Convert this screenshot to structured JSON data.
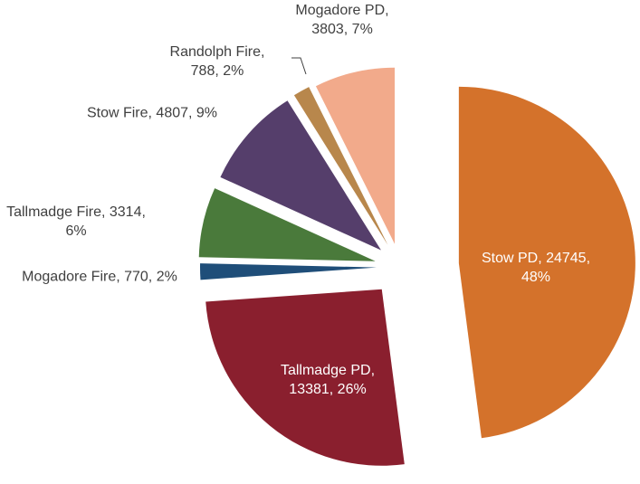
{
  "chart_data": {
    "type": "pie",
    "values": [
      24745,
      13381,
      770,
      3314,
      4807,
      788,
      3803
    ],
    "value_labels": [
      "Stow PD, 24745, 48%",
      "Tallmadge PD, 13381, 26%",
      "Mogadore Fire, 770, 2%",
      "Tallmadge Fire, 3314, 6%",
      "Stow Fire, 4807, 9%",
      "Randolph Fire, 788, 2%",
      "Mogadore PD, 3803, 7%"
    ],
    "colors": [
      "#d4722b",
      "#8a1f2e",
      "#1f4e79",
      "#4a7a3b",
      "#553e6b",
      "#b8874c",
      "#f2aa8b"
    ]
  }
}
